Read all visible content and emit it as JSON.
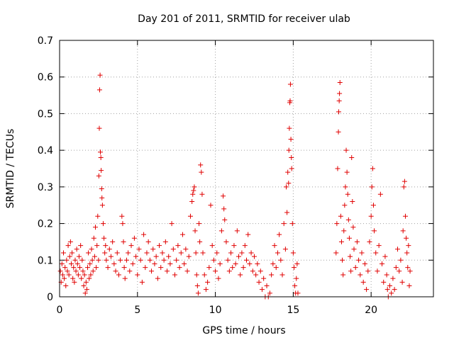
{
  "chart_data": {
    "type": "scatter",
    "title": "Day 201 of 2011, SRMTID for receiver ulab",
    "xlabel": "GPS time / hours",
    "ylabel": "SRMTID / TECUs",
    "xlim": [
      0,
      24
    ],
    "ylim": [
      0,
      0.7
    ],
    "x_ticks": [
      0,
      5,
      10,
      15,
      20
    ],
    "y_ticks": [
      0,
      0.1,
      0.2,
      0.3,
      0.4,
      0.5,
      0.6,
      0.7
    ],
    "x_tick_labels": [
      "0",
      "5",
      "10",
      "15",
      "20"
    ],
    "y_tick_labels": [
      "0",
      "0.1",
      "0.2",
      "0.3",
      "0.4",
      "0.5",
      "0.6",
      "0.7"
    ],
    "grid": true,
    "marker": "+",
    "color": "#e00000",
    "series": [
      {
        "name": "SRMTID",
        "points": [
          [
            0.05,
            0.07
          ],
          [
            0.1,
            0.04
          ],
          [
            0.15,
            0.09
          ],
          [
            0.2,
            0.06
          ],
          [
            0.25,
            0.12
          ],
          [
            0.3,
            0.05
          ],
          [
            0.35,
            0.08
          ],
          [
            0.4,
            0.03
          ],
          [
            0.45,
            0.1
          ],
          [
            0.5,
            0.07
          ],
          [
            0.55,
            0.14
          ],
          [
            0.6,
            0.06
          ],
          [
            0.65,
            0.11
          ],
          [
            0.7,
            0.15
          ],
          [
            0.75,
            0.09
          ],
          [
            0.8,
            0.12
          ],
          [
            0.85,
            0.05
          ],
          [
            0.9,
            0.08
          ],
          [
            0.95,
            0.04
          ],
          [
            1.0,
            0.1
          ],
          [
            1.05,
            0.07
          ],
          [
            1.1,
            0.13
          ],
          [
            1.15,
            0.09
          ],
          [
            1.2,
            0.06
          ],
          [
            1.25,
            0.11
          ],
          [
            1.3,
            0.08
          ],
          [
            1.35,
            0.14
          ],
          [
            1.4,
            0.05
          ],
          [
            1.45,
            0.1
          ],
          [
            1.5,
            0.07
          ],
          [
            1.55,
            0.03
          ],
          [
            1.6,
            0.06
          ],
          [
            1.65,
            0.01
          ],
          [
            1.7,
            0.04
          ],
          [
            1.75,
            0.02
          ],
          [
            1.8,
            0.08
          ],
          [
            1.85,
            0.12
          ],
          [
            1.9,
            0.05
          ],
          [
            1.95,
            0.09
          ],
          [
            2.0,
            0.06
          ],
          [
            2.05,
            0.13
          ],
          [
            2.1,
            0.1
          ],
          [
            2.15,
            0.07
          ],
          [
            2.2,
            0.16
          ],
          [
            2.25,
            0.11
          ],
          [
            2.3,
            0.19
          ],
          [
            2.35,
            0.08
          ],
          [
            2.4,
            0.14
          ],
          [
            2.45,
            0.22
          ],
          [
            2.5,
            0.1
          ],
          [
            2.52,
            0.33
          ],
          [
            2.55,
            0.46
          ],
          [
            2.57,
            0.565
          ],
          [
            2.6,
            0.605
          ],
          [
            2.62,
            0.395
          ],
          [
            2.65,
            0.38
          ],
          [
            2.67,
            0.345
          ],
          [
            2.7,
            0.295
          ],
          [
            2.72,
            0.27
          ],
          [
            2.75,
            0.25
          ],
          [
            2.8,
            0.2
          ],
          [
            2.85,
            0.16
          ],
          [
            2.9,
            0.12
          ],
          [
            2.95,
            0.14
          ],
          [
            3.0,
            0.1
          ],
          [
            3.1,
            0.08
          ],
          [
            3.2,
            0.13
          ],
          [
            3.3,
            0.11
          ],
          [
            3.4,
            0.15
          ],
          [
            3.5,
            0.09
          ],
          [
            3.6,
            0.07
          ],
          [
            3.7,
            0.12
          ],
          [
            3.8,
            0.06
          ],
          [
            3.9,
            0.1
          ],
          [
            4.0,
            0.22
          ],
          [
            4.05,
            0.2
          ],
          [
            4.1,
            0.15
          ],
          [
            4.15,
            0.08
          ],
          [
            4.2,
            0.05
          ],
          [
            4.3,
            0.1
          ],
          [
            4.4,
            0.12
          ],
          [
            4.5,
            0.07
          ],
          [
            4.6,
            0.14
          ],
          [
            4.7,
            0.09
          ],
          [
            4.8,
            0.16
          ],
          [
            4.9,
            0.11
          ],
          [
            5.0,
            0.06
          ],
          [
            5.1,
            0.13
          ],
          [
            5.2,
            0.1
          ],
          [
            5.3,
            0.04
          ],
          [
            5.4,
            0.17
          ],
          [
            5.5,
            0.08
          ],
          [
            5.6,
            0.12
          ],
          [
            5.7,
            0.15
          ],
          [
            5.8,
            0.1
          ],
          [
            5.9,
            0.07
          ],
          [
            6.0,
            0.13
          ],
          [
            6.1,
            0.09
          ],
          [
            6.2,
            0.11
          ],
          [
            6.3,
            0.05
          ],
          [
            6.4,
            0.14
          ],
          [
            6.5,
            0.08
          ],
          [
            6.6,
            0.12
          ],
          [
            6.7,
            0.1
          ],
          [
            6.8,
            0.15
          ],
          [
            6.9,
            0.07
          ],
          [
            7.0,
            0.11
          ],
          [
            7.1,
            0.09
          ],
          [
            7.2,
            0.2
          ],
          [
            7.3,
            0.13
          ],
          [
            7.4,
            0.06
          ],
          [
            7.5,
            0.1
          ],
          [
            7.6,
            0.14
          ],
          [
            7.7,
            0.08
          ],
          [
            7.8,
            0.12
          ],
          [
            7.9,
            0.17
          ],
          [
            8.0,
            0.09
          ],
          [
            8.1,
            0.13
          ],
          [
            8.2,
            0.07
          ],
          [
            8.3,
            0.11
          ],
          [
            8.4,
            0.22
          ],
          [
            8.5,
            0.26
          ],
          [
            8.55,
            0.28
          ],
          [
            8.6,
            0.29
          ],
          [
            8.65,
            0.3
          ],
          [
            8.7,
            0.18
          ],
          [
            8.75,
            0.12
          ],
          [
            8.8,
            0.06
          ],
          [
            8.85,
            0.03
          ],
          [
            8.9,
            0.01
          ],
          [
            8.95,
            0.2
          ],
          [
            9.0,
            0.15
          ],
          [
            9.05,
            0.36
          ],
          [
            9.1,
            0.34
          ],
          [
            9.15,
            0.28
          ],
          [
            9.2,
            0.12
          ],
          [
            9.3,
            0.06
          ],
          [
            9.4,
            0.02
          ],
          [
            9.5,
            0.04
          ],
          [
            9.6,
            0.08
          ],
          [
            9.7,
            0.25
          ],
          [
            9.8,
            0.14
          ],
          [
            9.9,
            0.1
          ],
          [
            10.0,
            0.07
          ],
          [
            10.1,
            0.12
          ],
          [
            10.2,
            0.05
          ],
          [
            10.3,
            0.09
          ],
          [
            10.4,
            0.18
          ],
          [
            10.5,
            0.275
          ],
          [
            10.55,
            0.24
          ],
          [
            10.6,
            0.21
          ],
          [
            10.7,
            0.15
          ],
          [
            10.8,
            0.1
          ],
          [
            10.9,
            0.07
          ],
          [
            11.0,
            0.12
          ],
          [
            11.1,
            0.08
          ],
          [
            11.2,
            0.14
          ],
          [
            11.3,
            0.09
          ],
          [
            11.4,
            0.18
          ],
          [
            11.5,
            0.11
          ],
          [
            11.6,
            0.06
          ],
          [
            11.7,
            0.12
          ],
          [
            11.8,
            0.08
          ],
          [
            11.9,
            0.14
          ],
          [
            12.0,
            0.1
          ],
          [
            12.1,
            0.17
          ],
          [
            12.2,
            0.09
          ],
          [
            12.3,
            0.12
          ],
          [
            12.4,
            0.07
          ],
          [
            12.5,
            0.11
          ],
          [
            12.6,
            0.06
          ],
          [
            12.7,
            0.09
          ],
          [
            12.8,
            0.04
          ],
          [
            12.9,
            0.07
          ],
          [
            13.0,
            0.02
          ],
          [
            13.1,
            0.05
          ],
          [
            13.2,
            0.0
          ],
          [
            13.3,
            0.03
          ],
          [
            13.4,
            0.0
          ],
          [
            13.5,
            0.01
          ],
          [
            13.6,
            0.06
          ],
          [
            13.7,
            0.09
          ],
          [
            13.8,
            0.14
          ],
          [
            13.9,
            0.08
          ],
          [
            14.0,
            0.12
          ],
          [
            14.1,
            0.17
          ],
          [
            14.2,
            0.1
          ],
          [
            14.3,
            0.06
          ],
          [
            14.4,
            0.2
          ],
          [
            14.5,
            0.13
          ],
          [
            14.55,
            0.3
          ],
          [
            14.6,
            0.23
          ],
          [
            14.65,
            0.34
          ],
          [
            14.7,
            0.31
          ],
          [
            14.72,
            0.4
          ],
          [
            14.75,
            0.46
          ],
          [
            14.78,
            0.53
          ],
          [
            14.8,
            0.535
          ],
          [
            14.82,
            0.58
          ],
          [
            14.85,
            0.43
          ],
          [
            14.88,
            0.38
          ],
          [
            14.9,
            0.35
          ],
          [
            14.95,
            0.2
          ],
          [
            15.0,
            0.12
          ],
          [
            15.05,
            0.08
          ],
          [
            15.1,
            0.03
          ],
          [
            15.15,
            0.01
          ],
          [
            15.2,
            0.05
          ],
          [
            15.25,
            0.09
          ],
          [
            15.3,
            0.01
          ],
          [
            17.75,
            0.12
          ],
          [
            17.8,
            0.2
          ],
          [
            17.85,
            0.35
          ],
          [
            17.9,
            0.45
          ],
          [
            17.92,
            0.505
          ],
          [
            17.95,
            0.535
          ],
          [
            17.97,
            0.555
          ],
          [
            18.0,
            0.585
          ],
          [
            18.05,
            0.22
          ],
          [
            18.1,
            0.15
          ],
          [
            18.15,
            0.1
          ],
          [
            18.2,
            0.06
          ],
          [
            18.25,
            0.18
          ],
          [
            18.3,
            0.25
          ],
          [
            18.35,
            0.3
          ],
          [
            18.4,
            0.4
          ],
          [
            18.45,
            0.34
          ],
          [
            18.5,
            0.28
          ],
          [
            18.55,
            0.21
          ],
          [
            18.6,
            0.16
          ],
          [
            18.65,
            0.11
          ],
          [
            18.7,
            0.07
          ],
          [
            18.75,
            0.38
          ],
          [
            18.8,
            0.26
          ],
          [
            18.85,
            0.19
          ],
          [
            18.9,
            0.13
          ],
          [
            19.0,
            0.08
          ],
          [
            19.1,
            0.15
          ],
          [
            19.2,
            0.1
          ],
          [
            19.3,
            0.06
          ],
          [
            19.4,
            0.12
          ],
          [
            19.5,
            0.04
          ],
          [
            19.6,
            0.09
          ],
          [
            19.7,
            0.02
          ],
          [
            19.8,
            0.07
          ],
          [
            19.9,
            0.15
          ],
          [
            20.0,
            0.22
          ],
          [
            20.05,
            0.3
          ],
          [
            20.1,
            0.35
          ],
          [
            20.15,
            0.25
          ],
          [
            20.2,
            0.18
          ],
          [
            20.3,
            0.12
          ],
          [
            20.4,
            0.07
          ],
          [
            20.5,
            0.14
          ],
          [
            20.6,
            0.28
          ],
          [
            20.7,
            0.09
          ],
          [
            20.8,
            0.04
          ],
          [
            20.9,
            0.11
          ],
          [
            21.0,
            0.06
          ],
          [
            21.05,
            0.02
          ],
          [
            21.1,
            0.0
          ],
          [
            21.2,
            0.03
          ],
          [
            21.3,
            0.01
          ],
          [
            21.4,
            0.05
          ],
          [
            21.5,
            0.02
          ],
          [
            21.6,
            0.08
          ],
          [
            21.7,
            0.13
          ],
          [
            21.8,
            0.07
          ],
          [
            21.9,
            0.1
          ],
          [
            22.0,
            0.04
          ],
          [
            22.05,
            0.18
          ],
          [
            22.1,
            0.3
          ],
          [
            22.15,
            0.315
          ],
          [
            22.2,
            0.22
          ],
          [
            22.25,
            0.16
          ],
          [
            22.3,
            0.12
          ],
          [
            22.35,
            0.08
          ],
          [
            22.4,
            0.14
          ],
          [
            22.45,
            0.03
          ],
          [
            22.5,
            0.07
          ]
        ]
      }
    ]
  }
}
